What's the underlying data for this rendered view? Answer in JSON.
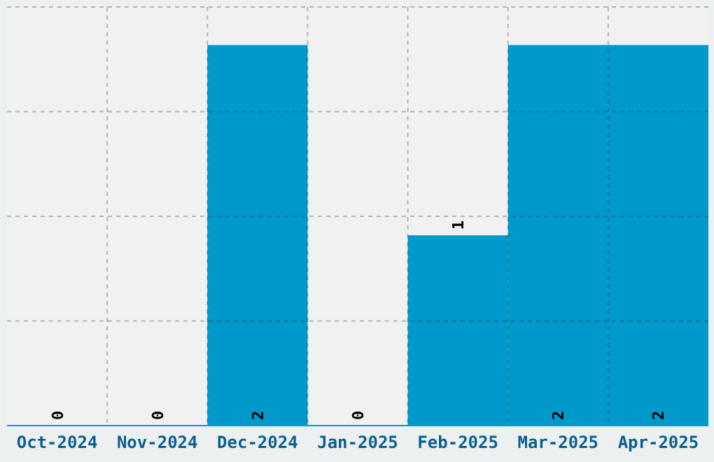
{
  "chart_data": {
    "type": "bar",
    "categories": [
      "Oct-2024",
      "Nov-2024",
      "Dec-2024",
      "Jan-2025",
      "Feb-2025",
      "Mar-2025",
      "Apr-2025"
    ],
    "values": [
      0,
      0,
      2,
      0,
      1,
      2,
      2
    ],
    "color": "#0099cc",
    "ylim": [
      0,
      2.2
    ],
    "yticks": [
      {
        "value": 0,
        "label": null
      },
      {
        "value": 0.55,
        "label": null
      },
      {
        "value": 1.1,
        "label": null
      },
      {
        "value": 1.65,
        "label": null
      },
      {
        "value": 2.2,
        "label": null
      }
    ],
    "tick_labels": "x",
    "grid": true,
    "data_labels": true
  }
}
